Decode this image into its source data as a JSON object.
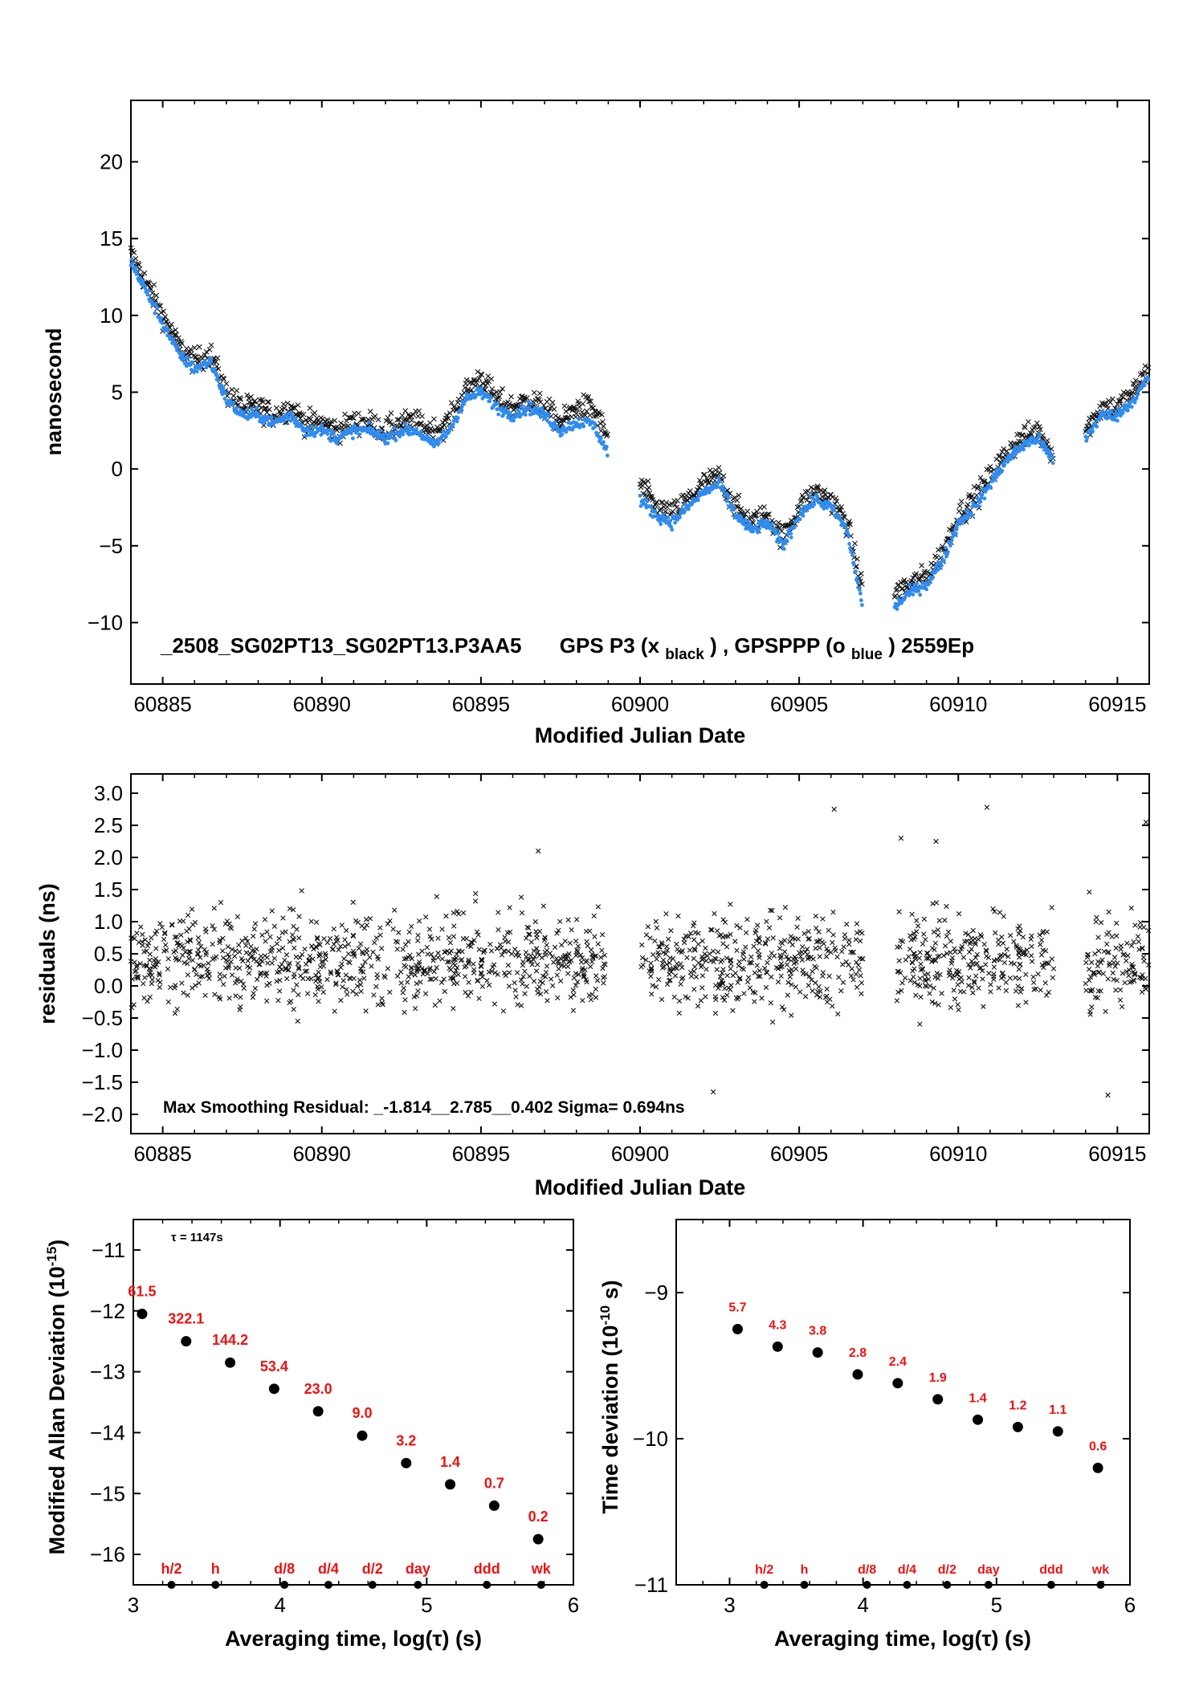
{
  "colors": {
    "black_series": "#111111",
    "blue_series": "#2f8cf0",
    "annotation": "#ee1111",
    "axes": "#000000"
  },
  "chart_data": [
    {
      "id": "timeseries",
      "type": "scatter",
      "title": "_2508_SG02PT13_SG02PT13.P3AA5     GPS P3 (x_black) ,  GPSPPP (o_blue)  2559Ep",
      "title_parts": {
        "file": "_2508_SG02PT13_SG02PT13.P3AA5",
        "gps_prefix": "GPS P3 (x",
        "black_sub": "black",
        "mid": ") ,  GPSPPP (o",
        "blue_sub": "blue",
        "suffix": ")  2559Ep"
      },
      "xlabel": "Modified Julian Date",
      "ylabel": "nanosecond",
      "xlim": [
        60884,
        60916
      ],
      "ylim": [
        -14,
        24
      ],
      "xticks": [
        60885,
        60890,
        60895,
        60900,
        60905,
        60910,
        60915
      ],
      "yticks": [
        -10,
        -5,
        0,
        5,
        10,
        15,
        20
      ],
      "series": [
        {
          "marker": "x",
          "color": "black",
          "x": [
            60884.0,
            60884.5,
            60885.0,
            60885.5,
            60886.0,
            60886.5,
            60887.0,
            60887.5,
            60888.0,
            60888.5,
            60889.0,
            60889.5,
            60890.0,
            60890.5,
            60891.0,
            60891.5,
            60892.0,
            60892.5,
            60893.0,
            60893.5,
            60894.0,
            60894.5,
            60895.0,
            60895.5,
            60896.0,
            60896.5,
            60897.0,
            60897.5,
            60898.0,
            60898.5,
            60899.0,
            null,
            60900.0,
            60900.5,
            60901.0,
            60901.5,
            60902.0,
            60902.5,
            60903.0,
            60903.5,
            60904.0,
            60904.5,
            60905.0,
            60905.5,
            60906.0,
            60906.5,
            60907.0,
            null,
            60908.0,
            60908.5,
            60909.0,
            60909.5,
            60910.0,
            60910.5,
            60911.0,
            60911.5,
            60912.0,
            60912.5,
            60913.0,
            null,
            60914.0,
            60914.5,
            60915.0,
            60915.5,
            60916.0
          ],
          "y": [
            14.0,
            12.0,
            10.0,
            8.0,
            7.0,
            7.5,
            5.0,
            4.0,
            4.0,
            3.5,
            4.0,
            3.0,
            3.0,
            2.5,
            3.0,
            3.0,
            2.5,
            3.0,
            3.0,
            2.5,
            3.0,
            5.0,
            6.0,
            4.5,
            4.0,
            4.5,
            4.0,
            3.0,
            4.0,
            4.0,
            2.0,
            null,
            -1.0,
            -2.5,
            -3.0,
            -2.0,
            -1.0,
            -0.5,
            -2.5,
            -3.5,
            -3.0,
            -4.5,
            -2.5,
            -1.5,
            -2.0,
            -3.5,
            -8.0,
            null,
            -8.0,
            -7.5,
            -7.0,
            -5.5,
            -3.0,
            -2.0,
            -0.5,
            1.0,
            2.0,
            2.5,
            1.0,
            null,
            2.5,
            4.0,
            4.0,
            5.0,
            6.5
          ]
        },
        {
          "marker": "o",
          "color": "blue",
          "x": [
            60884.0,
            60884.5,
            60885.0,
            60885.5,
            60886.0,
            60886.5,
            60887.0,
            60887.5,
            60888.0,
            60888.5,
            60889.0,
            60889.5,
            60890.0,
            60890.5,
            60891.0,
            60891.5,
            60892.0,
            60892.5,
            60893.0,
            60893.5,
            60894.0,
            60894.5,
            60895.0,
            60895.5,
            60896.0,
            60896.5,
            60897.0,
            60897.5,
            60898.0,
            60898.5,
            60899.0,
            null,
            60900.0,
            60900.5,
            60901.0,
            60901.5,
            60902.0,
            60902.5,
            60903.0,
            60903.5,
            60904.0,
            60904.5,
            60905.0,
            60905.5,
            60906.0,
            60906.5,
            60907.0,
            null,
            60908.0,
            60908.5,
            60909.0,
            60909.5,
            60910.0,
            60910.5,
            60911.0,
            60911.5,
            60912.0,
            60912.5,
            60913.0,
            null,
            60914.0,
            60914.5,
            60915.0,
            60915.5,
            60916.0
          ],
          "y": [
            13.5,
            11.5,
            9.5,
            7.5,
            6.5,
            7.0,
            4.5,
            3.5,
            3.5,
            3.0,
            3.5,
            2.5,
            2.5,
            2.0,
            2.5,
            2.5,
            2.0,
            2.5,
            2.5,
            1.5,
            2.5,
            4.5,
            5.0,
            4.0,
            3.5,
            4.0,
            3.5,
            2.5,
            3.0,
            3.0,
            1.0,
            null,
            -2.0,
            -3.0,
            -3.5,
            -2.5,
            -1.5,
            -1.0,
            -3.0,
            -4.0,
            -3.5,
            -5.0,
            -3.0,
            -2.0,
            -2.5,
            -4.0,
            -9.0,
            null,
            -9.0,
            -8.0,
            -7.5,
            -6.0,
            -3.5,
            -2.5,
            -1.0,
            0.5,
            1.5,
            2.0,
            0.5,
            null,
            2.0,
            3.5,
            3.5,
            4.5,
            6.0
          ]
        }
      ]
    },
    {
      "id": "residuals",
      "type": "scatter",
      "xlabel": "Modified Julian Date",
      "ylabel": "residuals (ns)",
      "xlim": [
        60884,
        60916
      ],
      "ylim": [
        -2.3,
        3.3
      ],
      "xticks": [
        60885,
        60890,
        60895,
        60900,
        60905,
        60910,
        60915
      ],
      "yticks": [
        -2.0,
        -1.5,
        -1.0,
        -0.5,
        0.0,
        0.5,
        1.0,
        1.5,
        2.0,
        2.5,
        3.0
      ],
      "ytick_labels": [
        "−2.0",
        "−1.5",
        "−1.0",
        "−0.5",
        "0.0",
        "0.5",
        "1.0",
        "1.5",
        "2.0",
        "2.5",
        "3.0"
      ],
      "annotation": "Max Smoothing Residual: _-1.814__2.785__0.402  Sigma= 0.694ns",
      "sigma": 0.694,
      "mean": 0.402,
      "range": [
        -1.814,
        2.785
      ],
      "segments": [
        [
          60884,
          60899
        ],
        [
          60900,
          60907
        ],
        [
          60908,
          60913
        ],
        [
          60914,
          60916
        ]
      ],
      "outliers": {
        "x": [
          60906.1,
          60910.9,
          60915.9,
          60909.3,
          60896.8,
          60908.2,
          60914.7,
          60902.3
        ],
        "y": [
          2.75,
          2.78,
          2.55,
          2.25,
          2.1,
          2.3,
          -1.7,
          -1.65
        ]
      }
    },
    {
      "id": "mdev",
      "type": "scatter",
      "xlabel": "Averaging time, log(τ) (s)",
      "ylabel": "Modified Allan Deviation (10⁻¹⁵)",
      "ylabel_parts": {
        "main": "Modified Allan Deviation (10",
        "sup": "-15",
        "end": ")"
      },
      "xlim": [
        3,
        6
      ],
      "ylim": [
        -16.5,
        -10.5
      ],
      "xticks": [
        3,
        4,
        5,
        6
      ],
      "yticks": [
        -11,
        -12,
        -13,
        -14,
        -15,
        -16
      ],
      "tau_label": "τ = 1147s",
      "x": [
        3.06,
        3.36,
        3.66,
        3.96,
        4.26,
        4.56,
        4.86,
        5.16,
        5.46,
        5.76
      ],
      "y": [
        -12.05,
        -12.5,
        -12.85,
        -13.28,
        -13.65,
        -14.05,
        -14.5,
        -14.85,
        -15.2,
        -15.75
      ],
      "point_labels": [
        "61.5",
        "322.1",
        "144.2",
        "53.4",
        "23.0",
        "9.0",
        "3.2",
        "1.4",
        "0.7",
        "0.2"
      ],
      "markers": {
        "labels": [
          "h/2",
          "h",
          "d/8",
          "d/4",
          "d/2",
          "day",
          "ddd",
          "wk"
        ],
        "x": [
          3.26,
          3.56,
          4.03,
          4.33,
          4.63,
          4.94,
          5.41,
          5.78
        ]
      }
    },
    {
      "id": "tdev",
      "type": "scatter",
      "xlabel": "Averaging time, log(τ) (s)",
      "ylabel": "Time deviation (10⁻¹⁰ s)",
      "ylabel_parts": {
        "main": "Time deviation (10",
        "sup": "-10",
        "end": " s)"
      },
      "xlim": [
        2.6,
        6.0
      ],
      "ylim": [
        -11,
        -8.5
      ],
      "xticks": [
        3,
        4,
        5,
        6
      ],
      "yticks": [
        -9,
        -10,
        -11
      ],
      "x": [
        3.06,
        3.36,
        3.66,
        3.96,
        4.26,
        4.56,
        4.86,
        5.16,
        5.46,
        5.76
      ],
      "y": [
        -9.25,
        -9.37,
        -9.41,
        -9.56,
        -9.62,
        -9.73,
        -9.87,
        -9.92,
        -9.95,
        -10.2
      ],
      "point_labels": [
        "5.7",
        "4.3",
        "3.8",
        "2.8",
        "2.4",
        "1.9",
        "1.4",
        "1.2",
        "1.1",
        "0.6"
      ],
      "markers": {
        "labels": [
          "h/2",
          "h",
          "d/8",
          "d/4",
          "d/2",
          "day",
          "ddd",
          "wk"
        ],
        "x": [
          3.26,
          3.56,
          4.03,
          4.33,
          4.63,
          4.94,
          5.41,
          5.78
        ]
      }
    }
  ]
}
